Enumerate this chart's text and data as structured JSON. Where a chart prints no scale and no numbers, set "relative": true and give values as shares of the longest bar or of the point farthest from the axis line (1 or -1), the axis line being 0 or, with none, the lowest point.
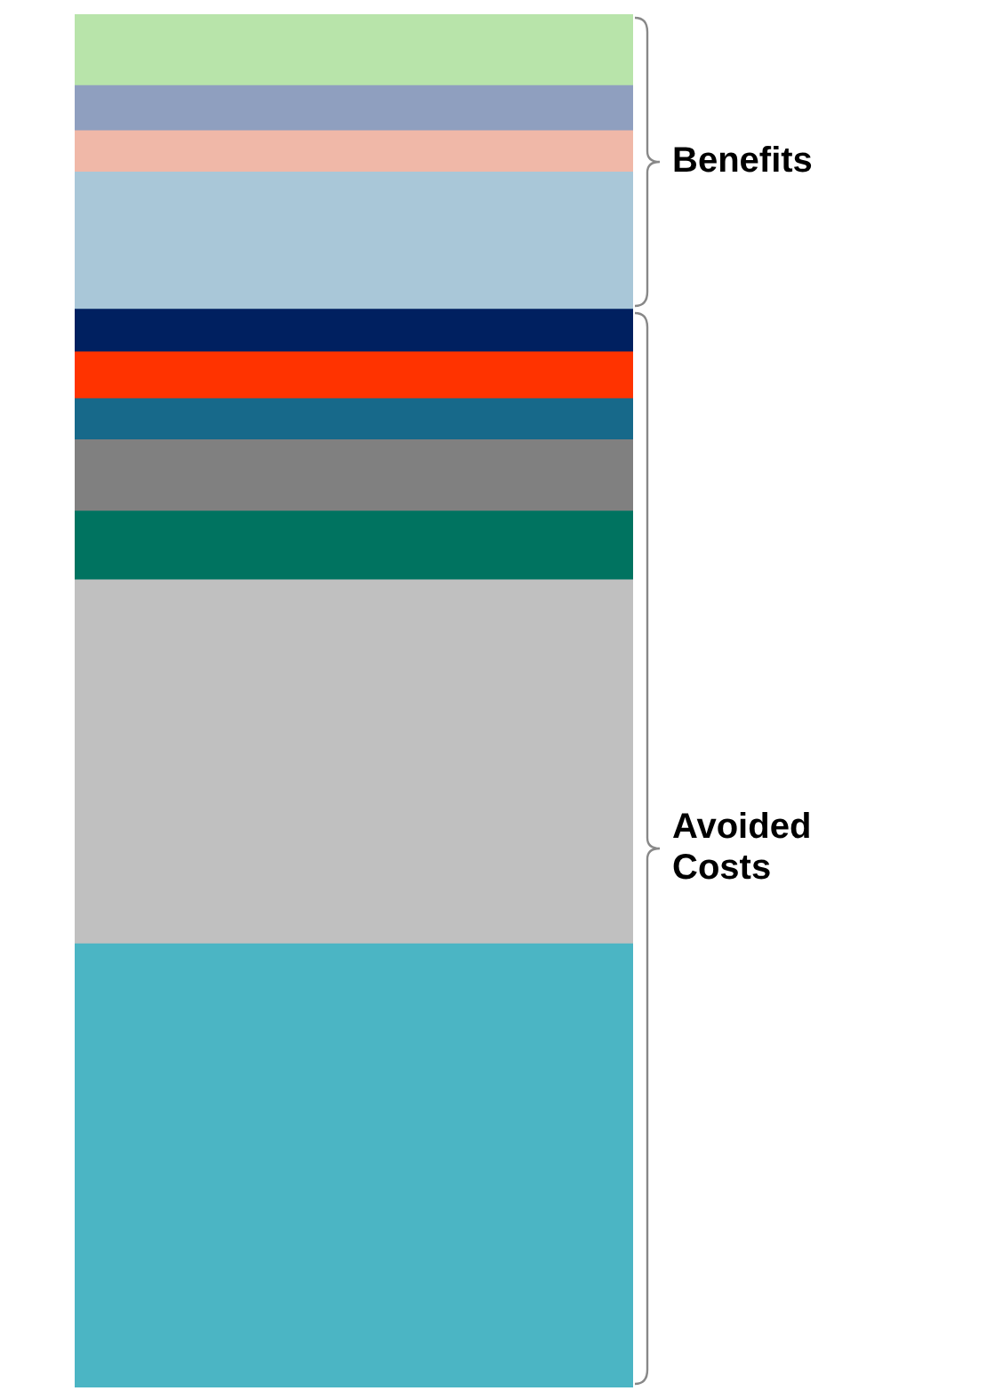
{
  "chart_data": {
    "type": "bar",
    "stacked": true,
    "relative": true,
    "categories": [
      null
    ],
    "series": [
      {
        "color": "#4bb5c4",
        "values": [
          0.323
        ]
      },
      {
        "color": "#c0c0c0",
        "values": [
          0.265
        ]
      },
      {
        "color": "#007360",
        "values": [
          0.05
        ]
      },
      {
        "color": "#808080",
        "values": [
          0.052
        ]
      },
      {
        "color": "#17698a",
        "values": [
          0.03
        ]
      },
      {
        "color": "#ff3300",
        "values": [
          0.034
        ]
      },
      {
        "color": "#002060",
        "values": [
          0.031
        ]
      },
      {
        "color": "#a9c7d8",
        "values": [
          0.1
        ]
      },
      {
        "color": "#f0b8a8",
        "values": [
          0.03
        ]
      },
      {
        "color": "#8f9fbf",
        "values": [
          0.033
        ]
      },
      {
        "color": "#b8e4aa",
        "values": [
          0.052
        ]
      }
    ],
    "annotations": [
      "Benefits",
      "Avoided Costs"
    ],
    "legend": false,
    "tick_labels": false
  }
}
